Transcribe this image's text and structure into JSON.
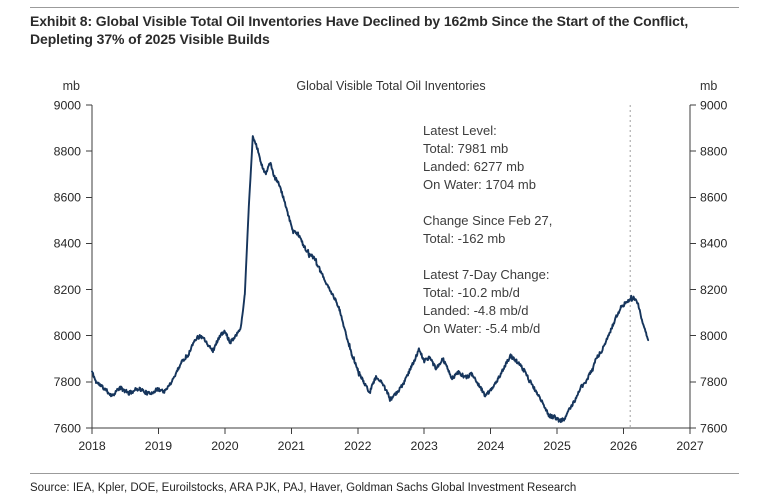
{
  "page": {
    "heading": "Exhibit 8: Global Visible Total Oil Inventories Have Declined by 162mb Since the Start of the Conflict, Depleting 37% of 2025 Visible Builds",
    "source": "Source: IEA, Kpler, DOE, Euroilstocks, ARA PJK, PAJ, Haver, Goldman Sachs Global Investment Research"
  },
  "chart_data": {
    "type": "line",
    "title": "Global Visible Total Oil Inventories",
    "unit_label_left": "mb",
    "unit_label_right": "mb",
    "xlabel": "",
    "ylabel": "mb",
    "xlim": [
      2018,
      2027
    ],
    "ylim": [
      7600,
      9000
    ],
    "x_ticks": [
      2018,
      2019,
      2020,
      2021,
      2022,
      2023,
      2024,
      2025,
      2026,
      2027
    ],
    "y_ticks": [
      7600,
      7800,
      8000,
      8200,
      8400,
      8600,
      8800,
      9000
    ],
    "grid": false,
    "legend_position": "none",
    "event_line": {
      "x": 2026.1,
      "style": "dotted",
      "color": "#a0a0a0",
      "meaning": "Feb 27 conflict start"
    },
    "annotation": {
      "lines": [
        "Latest Level:",
        "Total: 7981 mb",
        "Landed: 6277 mb",
        "On Water: 1704 mb",
        "",
        "Change Since Feb 27,",
        "Total: -162 mb",
        "",
        "Latest 7-Day Change:",
        "Total: -10.2 mb/d",
        "Landed: -4.8 mb/d",
        "On Water: -5.4 mb/d"
      ]
    },
    "series": [
      {
        "name": "Global Visible Total Oil Inventories",
        "color": "#16355c",
        "points": [
          [
            2018.0,
            7845
          ],
          [
            2018.06,
            7800
          ],
          [
            2018.15,
            7780
          ],
          [
            2018.3,
            7740
          ],
          [
            2018.42,
            7775
          ],
          [
            2018.55,
            7750
          ],
          [
            2018.7,
            7772
          ],
          [
            2018.85,
            7748
          ],
          [
            2019.0,
            7768
          ],
          [
            2019.1,
            7758
          ],
          [
            2019.22,
            7812
          ],
          [
            2019.35,
            7888
          ],
          [
            2019.45,
            7918
          ],
          [
            2019.55,
            7985
          ],
          [
            2019.65,
            8002
          ],
          [
            2019.75,
            7962
          ],
          [
            2019.82,
            7935
          ],
          [
            2019.92,
            7998
          ],
          [
            2020.0,
            8018
          ],
          [
            2020.08,
            7972
          ],
          [
            2020.16,
            8000
          ],
          [
            2020.24,
            8035
          ],
          [
            2020.3,
            8180
          ],
          [
            2020.36,
            8560
          ],
          [
            2020.42,
            8862
          ],
          [
            2020.47,
            8830
          ],
          [
            2020.51,
            8790
          ],
          [
            2020.55,
            8742
          ],
          [
            2020.61,
            8700
          ],
          [
            2020.68,
            8752
          ],
          [
            2020.74,
            8690
          ],
          [
            2020.81,
            8662
          ],
          [
            2020.88,
            8598
          ],
          [
            2020.95,
            8525
          ],
          [
            2021.02,
            8458
          ],
          [
            2021.1,
            8442
          ],
          [
            2021.18,
            8395
          ],
          [
            2021.26,
            8352
          ],
          [
            2021.34,
            8338
          ],
          [
            2021.43,
            8282
          ],
          [
            2021.51,
            8238
          ],
          [
            2021.58,
            8196
          ],
          [
            2021.66,
            8158
          ],
          [
            2021.73,
            8108
          ],
          [
            2021.82,
            8008
          ],
          [
            2021.91,
            7918
          ],
          [
            2022.0,
            7852
          ],
          [
            2022.09,
            7798
          ],
          [
            2022.17,
            7758
          ],
          [
            2022.28,
            7822
          ],
          [
            2022.38,
            7788
          ],
          [
            2022.5,
            7722
          ],
          [
            2022.6,
            7758
          ],
          [
            2022.7,
            7798
          ],
          [
            2022.8,
            7862
          ],
          [
            2022.87,
            7905
          ],
          [
            2022.92,
            7940
          ],
          [
            2023.0,
            7890
          ],
          [
            2023.08,
            7908
          ],
          [
            2023.18,
            7855
          ],
          [
            2023.28,
            7900
          ],
          [
            2023.35,
            7858
          ],
          [
            2023.42,
            7815
          ],
          [
            2023.52,
            7842
          ],
          [
            2023.62,
            7818
          ],
          [
            2023.72,
            7835
          ],
          [
            2023.82,
            7788
          ],
          [
            2023.92,
            7738
          ],
          [
            2024.02,
            7772
          ],
          [
            2024.12,
            7818
          ],
          [
            2024.22,
            7872
          ],
          [
            2024.3,
            7912
          ],
          [
            2024.4,
            7888
          ],
          [
            2024.5,
            7850
          ],
          [
            2024.6,
            7800
          ],
          [
            2024.7,
            7748
          ],
          [
            2024.8,
            7700
          ],
          [
            2024.88,
            7652
          ],
          [
            2024.96,
            7648
          ],
          [
            2025.04,
            7630
          ],
          [
            2025.12,
            7642
          ],
          [
            2025.2,
            7690
          ],
          [
            2025.28,
            7725
          ],
          [
            2025.36,
            7778
          ],
          [
            2025.44,
            7802
          ],
          [
            2025.52,
            7852
          ],
          [
            2025.6,
            7908
          ],
          [
            2025.66,
            7928
          ],
          [
            2025.73,
            7972
          ],
          [
            2025.81,
            8025
          ],
          [
            2025.89,
            8082
          ],
          [
            2025.96,
            8122
          ],
          [
            2026.03,
            8142
          ],
          [
            2026.1,
            8152
          ],
          [
            2026.15,
            8162
          ],
          [
            2026.22,
            8138
          ],
          [
            2026.28,
            8062
          ],
          [
            2026.33,
            8022
          ],
          [
            2026.37,
            7981
          ]
        ]
      }
    ],
    "appearance": {
      "noise_amplitude_mb": 9,
      "line_width": 1.9,
      "axis_color": "#3c3c3c",
      "tick_label_color": "#262626"
    }
  }
}
